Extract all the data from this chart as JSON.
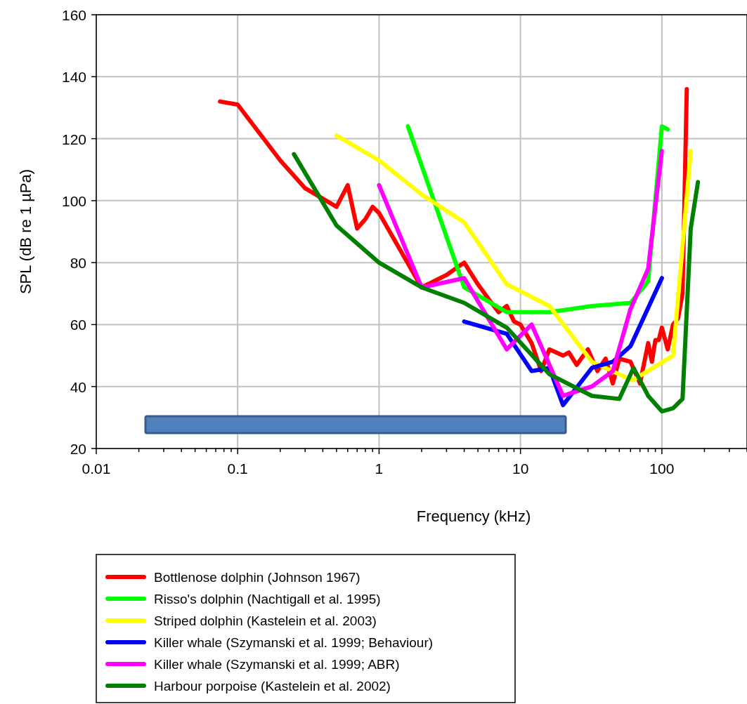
{
  "chart_data": {
    "type": "line",
    "xlabel": "Frequency (kHz)",
    "ylabel": "SPL (dB re 1 µPa)",
    "log": "x",
    "grid": true,
    "legend": "bottom",
    "line_style": "solid",
    "marker": "none",
    "xlim": [
      0.01,
      400
    ],
    "ylim": [
      20,
      160
    ],
    "xticks": [
      0.01,
      {
        "value": 0.02,
        "label": null
      },
      {
        "value": 0.03,
        "label": null
      },
      {
        "value": 0.04,
        "label": null
      },
      {
        "value": 0.05,
        "label": null
      },
      {
        "value": 0.06,
        "label": null
      },
      {
        "value": 0.07,
        "label": null
      },
      {
        "value": 0.08,
        "label": null
      },
      {
        "value": 0.09,
        "label": null
      },
      0.1,
      {
        "value": 0.2,
        "label": null
      },
      {
        "value": 0.3,
        "label": null
      },
      {
        "value": 0.4,
        "label": null
      },
      {
        "value": 0.5,
        "label": null
      },
      {
        "value": 0.6,
        "label": null
      },
      {
        "value": 0.7,
        "label": null
      },
      {
        "value": 0.8,
        "label": null
      },
      {
        "value": 0.9,
        "label": null
      },
      1,
      {
        "value": 2,
        "label": null
      },
      {
        "value": 3,
        "label": null
      },
      {
        "value": 4,
        "label": null
      },
      {
        "value": 5,
        "label": null
      },
      {
        "value": 6,
        "label": null
      },
      {
        "value": 7,
        "label": null
      },
      {
        "value": 8,
        "label": null
      },
      {
        "value": 9,
        "label": null
      },
      10,
      {
        "value": 20,
        "label": null
      },
      {
        "value": 30,
        "label": null
      },
      {
        "value": 40,
        "label": null
      },
      {
        "value": 50,
        "label": null
      },
      {
        "value": 60,
        "label": null
      },
      {
        "value": 70,
        "label": null
      },
      {
        "value": 80,
        "label": null
      },
      {
        "value": 90,
        "label": null
      },
      100,
      {
        "value": 200,
        "label": null
      },
      {
        "value": 300,
        "label": null
      },
      {
        "value": 400,
        "label": null
      }
    ],
    "yticks": [
      20,
      40,
      60,
      80,
      100,
      120,
      140,
      160
    ],
    "series": [
      {
        "name": "Bottlenose dolphin (Johnson 1967)",
        "color": "#ff0000",
        "x": [
          0.075,
          0.1,
          0.2,
          0.3,
          0.5,
          0.6,
          0.7,
          0.8,
          0.9,
          1,
          2,
          3,
          4,
          5,
          6,
          7,
          8,
          9,
          10,
          12,
          14,
          16,
          20,
          22,
          25,
          30,
          35,
          40,
          45,
          50,
          60,
          70,
          80,
          85,
          90,
          95,
          100,
          110,
          120,
          130,
          140,
          150
        ],
        "values": [
          132,
          131,
          113,
          104,
          98,
          105,
          91,
          94,
          98,
          96,
          72,
          76,
          80,
          73,
          68,
          64,
          66,
          61,
          60,
          54,
          45,
          52,
          50,
          51,
          47,
          52,
          45,
          49,
          41,
          49,
          48,
          41,
          54,
          48,
          55,
          55,
          59,
          52,
          60,
          62,
          70,
          136
        ]
      },
      {
        "name": "Risso's dolphin (Nachtigall et al. 1995)",
        "color": "#00ff00",
        "x": [
          1.6,
          4,
          8,
          16,
          32,
          60,
          80,
          100,
          110
        ],
        "values": [
          124,
          72,
          64,
          64,
          66,
          67,
          74,
          124,
          123
        ]
      },
      {
        "name": "Striped dolphin (Kastelein et al. 2003)",
        "color": "#ffff00",
        "x": [
          0.5,
          1,
          2,
          4,
          8,
          16,
          32,
          62,
          120,
          160
        ],
        "values": [
          121,
          113,
          102,
          93,
          73,
          66,
          48,
          42,
          50,
          116
        ]
      },
      {
        "name": "Killer whale (Szymanski et al. 1999; Behaviour)",
        "color": "#0000ff",
        "x": [
          4,
          8,
          12,
          16,
          20,
          32,
          45,
          60,
          100
        ],
        "values": [
          61,
          57,
          45,
          46,
          34,
          46,
          48,
          53,
          75
        ]
      },
      {
        "name": "Killer whale (Szymanski et al. 1999;  ABR)",
        "color": "#ff00ff",
        "x": [
          1,
          2,
          4,
          8,
          12,
          20,
          32,
          45,
          60,
          80,
          100
        ],
        "values": [
          105,
          72,
          75,
          52,
          60,
          37,
          40,
          45,
          65,
          78,
          116
        ]
      },
      {
        "name": "Harbour porpoise (Kastelein et al. 2002)",
        "color": "#008000",
        "x": [
          0.25,
          0.5,
          1,
          2,
          4,
          8,
          16,
          32,
          50,
          63,
          80,
          100,
          120,
          140,
          160,
          180
        ],
        "values": [
          115,
          92,
          80,
          72,
          67,
          59,
          44,
          37,
          36,
          46,
          37,
          32,
          33,
          36,
          91,
          106
        ]
      }
    ]
  }
}
